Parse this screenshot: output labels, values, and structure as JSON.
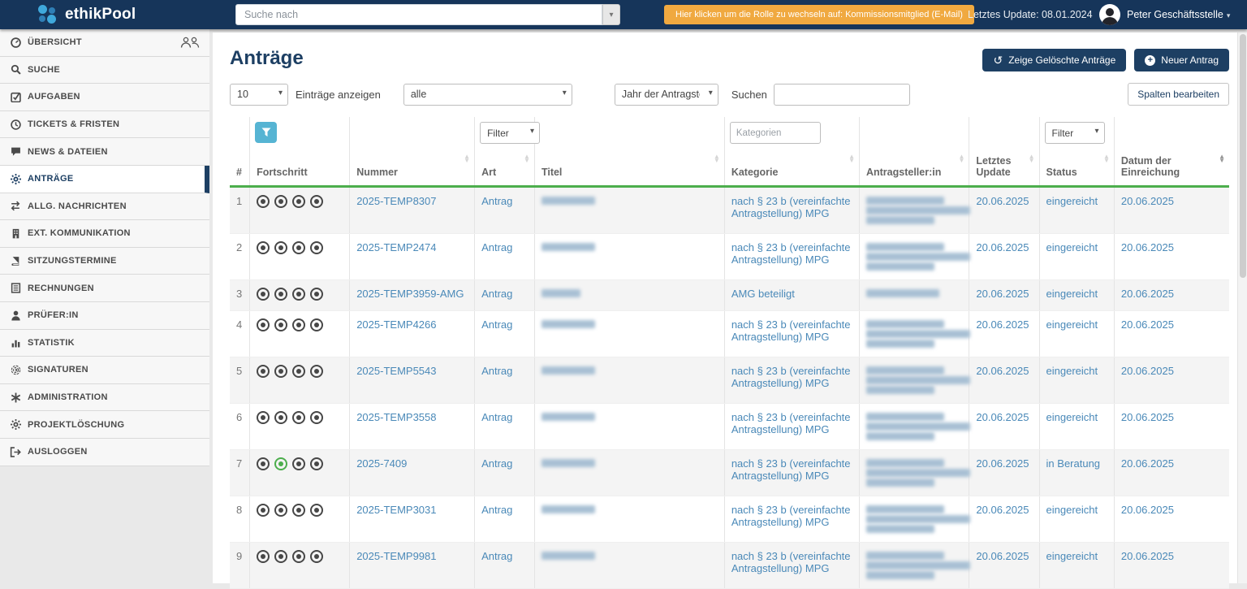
{
  "topbar": {
    "brand": "ethikPool",
    "search_placeholder": "Suche nach",
    "role_button": "Hier klicken um die Rolle zu wechseln auf: Kommissionsmitglied (E-Mail)",
    "last_update": "Letztes Update: 08.01.2024",
    "user": "Peter Geschäftsstelle"
  },
  "sidebar": {
    "items": [
      {
        "label": "ÜBERSICHT",
        "icon": "dashboard-icon",
        "active": false,
        "extra_icon": "group-icon"
      },
      {
        "label": "SUCHE",
        "icon": "search-icon",
        "active": false
      },
      {
        "label": "AUFGABEN",
        "icon": "tasks-icon",
        "active": false
      },
      {
        "label": "TICKETS & FRISTEN",
        "icon": "clock-icon",
        "active": false
      },
      {
        "label": "NEWS & DATEIEN",
        "icon": "comment-icon",
        "active": false
      },
      {
        "label": "ANTRÄGE",
        "icon": "gear-icon",
        "active": true
      },
      {
        "label": "ALLG. NACHRICHTEN",
        "icon": "exchange-icon",
        "active": false
      },
      {
        "label": "EXT. KOMMUNIKATION",
        "icon": "building-icon",
        "active": false
      },
      {
        "label": "SITZUNGSTERMINE",
        "icon": "book-icon",
        "active": false
      },
      {
        "label": "RECHNUNGEN",
        "icon": "invoice-icon",
        "active": false
      },
      {
        "label": "PRÜFER:IN",
        "icon": "user-icon",
        "active": false
      },
      {
        "label": "STATISTIK",
        "icon": "chart-icon",
        "active": false
      },
      {
        "label": "SIGNATUREN",
        "icon": "fingerprint-icon",
        "active": false
      },
      {
        "label": "ADMINISTRATION",
        "icon": "asterisk-icon",
        "active": false
      },
      {
        "label": "PROJEKTLÖSCHUNG",
        "icon": "gear-icon",
        "active": false
      },
      {
        "label": "AUSLOGGEN",
        "icon": "logout-icon",
        "active": false
      }
    ]
  },
  "toolbar": {
    "title": "Anträge",
    "show_deleted": "Zeige Gelöschte Anträge",
    "new_antrag": "Neuer Antrag",
    "edit_columns": "Spalten bearbeiten"
  },
  "controls": {
    "page_size": "10",
    "entries_label": "Einträge anzeigen",
    "category_filter": "alle",
    "year_filter": "Jahr der Antragste",
    "search_label": "Suchen"
  },
  "table": {
    "filter_row": {
      "art_filter": "Filter",
      "kategorie_placeholder": "Kategorien",
      "status_filter": "Filter"
    },
    "columns": [
      {
        "label": "#",
        "sort": false
      },
      {
        "label": "Fortschritt",
        "sort": false
      },
      {
        "label": "Nummer",
        "sort": true
      },
      {
        "label": "Art",
        "sort": true
      },
      {
        "label": "Titel",
        "sort": true
      },
      {
        "label": "Kategorie",
        "sort": true
      },
      {
        "label": "Antragsteller:in",
        "sort": true
      },
      {
        "label": "Letztes Update",
        "sort": true
      },
      {
        "label": "Status",
        "sort": true
      },
      {
        "label": "Datum der Einreichung",
        "sort": true,
        "sort_active": true
      }
    ],
    "rows": [
      {
        "num": "1",
        "progress": [
          "dark",
          "dark",
          "dark",
          "dark"
        ],
        "nummer": "2025-TEMP8307",
        "art": "Antrag",
        "titel_redacted": 1,
        "kategorie": "nach § 23 b (vereinfachte Antragstellung) MPG",
        "antragsteller_redacted": 3,
        "letztes_update": "20.06.2025",
        "status": "eingereicht",
        "datum": "20.06.2025"
      },
      {
        "num": "2",
        "progress": [
          "dark",
          "dark",
          "dark",
          "dark"
        ],
        "nummer": "2025-TEMP2474",
        "art": "Antrag",
        "titel_redacted": 1,
        "kategorie": "nach § 23 b (vereinfachte Antragstellung) MPG",
        "antragsteller_redacted": 3,
        "letztes_update": "20.06.2025",
        "status": "eingereicht",
        "datum": "20.06.2025"
      },
      {
        "num": "3",
        "progress": [
          "dark",
          "dark",
          "dark",
          "dark"
        ],
        "nummer": "2025-TEMP3959-AMG",
        "art": "Antrag",
        "titel_redacted": 1,
        "kategorie": "AMG beteiligt",
        "antragsteller_redacted": 1,
        "letztes_update": "20.06.2025",
        "status": "eingereicht",
        "datum": "20.06.2025"
      },
      {
        "num": "4",
        "progress": [
          "dark",
          "dark",
          "dark",
          "dark"
        ],
        "nummer": "2025-TEMP4266",
        "art": "Antrag",
        "titel_redacted": 1,
        "kategorie": "nach § 23 b (vereinfachte Antragstellung) MPG",
        "antragsteller_redacted": 3,
        "letztes_update": "20.06.2025",
        "status": "eingereicht",
        "datum": "20.06.2025"
      },
      {
        "num": "5",
        "progress": [
          "dark",
          "dark",
          "dark",
          "dark"
        ],
        "nummer": "2025-TEMP5543",
        "art": "Antrag",
        "titel_redacted": 1,
        "kategorie": "nach § 23 b (vereinfachte Antragstellung) MPG",
        "antragsteller_redacted": 3,
        "letztes_update": "20.06.2025",
        "status": "eingereicht",
        "datum": "20.06.2025"
      },
      {
        "num": "6",
        "progress": [
          "dark",
          "dark",
          "dark",
          "dark"
        ],
        "nummer": "2025-TEMP3558",
        "art": "Antrag",
        "titel_redacted": 1,
        "kategorie": "nach § 23 b (vereinfachte Antragstellung) MPG",
        "antragsteller_redacted": 3,
        "letztes_update": "20.06.2025",
        "status": "eingereicht",
        "datum": "20.06.2025"
      },
      {
        "num": "7",
        "progress": [
          "dark",
          "green",
          "dark",
          "dark"
        ],
        "nummer": "2025-7409",
        "art": "Antrag",
        "titel_redacted": 1,
        "kategorie": "nach § 23 b (vereinfachte Antragstellung) MPG",
        "antragsteller_redacted": 3,
        "letztes_update": "20.06.2025",
        "status": "in Beratung",
        "datum": "20.06.2025"
      },
      {
        "num": "8",
        "progress": [
          "dark",
          "dark",
          "dark",
          "dark"
        ],
        "nummer": "2025-TEMP3031",
        "art": "Antrag",
        "titel_redacted": 1,
        "kategorie": "nach § 23 b (vereinfachte Antragstellung) MPG",
        "antragsteller_redacted": 3,
        "letztes_update": "20.06.2025",
        "status": "eingereicht",
        "datum": "20.06.2025"
      },
      {
        "num": "9",
        "progress": [
          "dark",
          "dark",
          "dark",
          "dark"
        ],
        "nummer": "2025-TEMP9981",
        "art": "Antrag",
        "titel_redacted": 1,
        "kategorie": "nach § 23 b (vereinfachte Antragstellung) MPG",
        "antragsteller_redacted": 3,
        "letztes_update": "20.06.2025",
        "status": "eingereicht",
        "datum": "20.06.2025"
      }
    ]
  },
  "colors": {
    "topbar": "#16355a",
    "accent_navy": "#1d3f63",
    "role_orange": "#f0a940",
    "header_green": "#4cae4c",
    "link_blue": "#4a89b8",
    "progress_green": "#4cae4c",
    "filter_blue": "#56b4d3"
  }
}
